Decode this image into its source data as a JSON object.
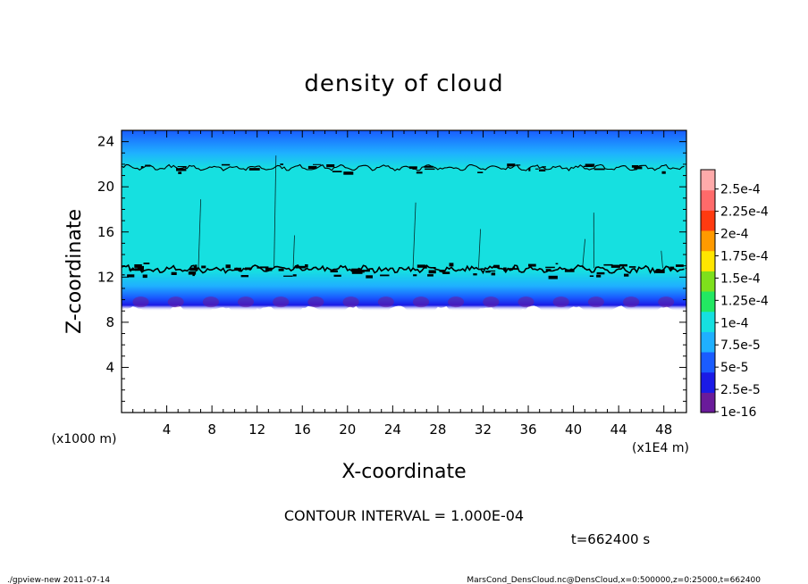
{
  "chart_data": {
    "type": "heatmap",
    "title": "density of cloud",
    "xlabel": "X-coordinate",
    "ylabel": "Z-coordinate",
    "x_unit_label": "(x1E4 m)",
    "y_unit_label": "(x1000 m)",
    "xlim": [
      0,
      50
    ],
    "ylim": [
      0,
      25
    ],
    "x_ticks": [
      "4",
      "8",
      "12",
      "16",
      "20",
      "24",
      "28",
      "32",
      "36",
      "40",
      "44",
      "48"
    ],
    "y_ticks": [
      "4",
      "8",
      "12",
      "16",
      "20",
      "24"
    ],
    "contour_interval_text": "CONTOUR INTERVAL = 1.000E-04",
    "time_text": "t=662400 s",
    "colorbar": {
      "labels": [
        "1e-16",
        "2.5e-5",
        "5e-5",
        "7.5e-5",
        "1e-4",
        "1.25e-4",
        "1.5e-4",
        "1.75e-4",
        "2e-4",
        "2.25e-4",
        "2.5e-4"
      ],
      "colors": [
        "#6a1b9a",
        "#1a1ae6",
        "#1a5cff",
        "#1fb0ff",
        "#16e0e0",
        "#22e862",
        "#7ee01c",
        "#ffe600",
        "#ff9a00",
        "#ff3a10",
        "#ff6a6a",
        "#ffaaaa"
      ]
    },
    "profile": [
      {
        "z": 9.0,
        "value": 0.0
      },
      {
        "z": 9.5,
        "value": 2.5e-05
      },
      {
        "z": 10.2,
        "value": 5e-05
      },
      {
        "z": 11.2,
        "value": 7.5e-05
      },
      {
        "z": 12.6,
        "value": 0.0001
      },
      {
        "z": 14.5,
        "value": 0.00012
      },
      {
        "z": 18.0,
        "value": 0.000115
      },
      {
        "z": 21.6,
        "value": 0.0001
      },
      {
        "z": 23.0,
        "value": 8e-05
      },
      {
        "z": 25.0,
        "value": 7e-05
      }
    ],
    "contour_levels_z": [
      12.7,
      21.7
    ]
  },
  "footer": {
    "left": "./gpview-new  2011-07-14",
    "right": "MarsCond_DensCloud.nc@DensCloud,x=0:500000,z=0:25000,t=662400"
  }
}
